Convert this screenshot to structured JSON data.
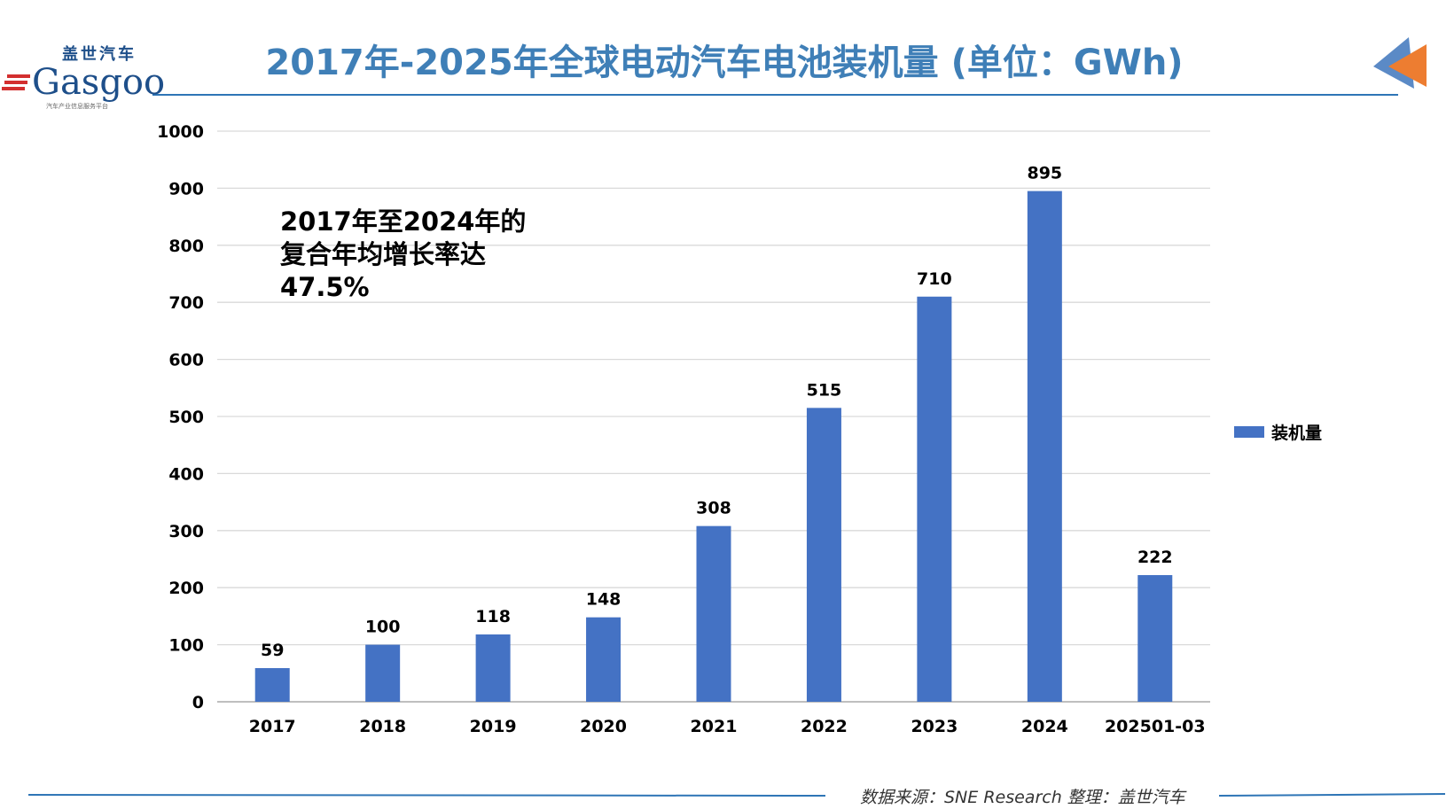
{
  "header": {
    "title": "2017年-2025年全球电动汽车电池装机量 (单位：GWh)",
    "logo_cn": "盖世汽车",
    "logo_en": "Gasgoo",
    "logo_sub": "汽车产业信息服务平台"
  },
  "annotation": [
    "2017年至2024年的",
    "复合年均增长率达",
    "47.5%"
  ],
  "footer": {
    "source": "数据来源：SNE Research 整理：盖世汽车"
  },
  "colors": {
    "bar": "#4472c4",
    "title": "#3f7fb7",
    "accent_blue": "#5b8ac6",
    "accent_orange": "#ed7d31"
  },
  "chart_data": {
    "type": "bar",
    "title": "2017年-2025年全球电动汽车电池装机量 (单位：GWh)",
    "categories": [
      "2017",
      "2018",
      "2019",
      "2020",
      "2021",
      "2022",
      "2023",
      "2024",
      "202501-03"
    ],
    "series": [
      {
        "name": "装机量",
        "values": [
          59,
          100,
          118,
          148,
          308,
          515,
          710,
          895,
          222
        ]
      }
    ],
    "ylim": [
      0,
      1000
    ],
    "yticks": [
      0,
      100,
      200,
      300,
      400,
      500,
      600,
      700,
      800,
      900,
      1000
    ],
    "grid": true,
    "legend": "right",
    "xlabel": "",
    "ylabel": ""
  }
}
